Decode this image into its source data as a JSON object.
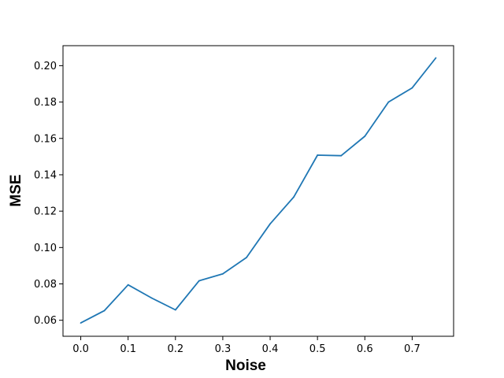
{
  "chart_data": {
    "type": "line",
    "title": "",
    "xlabel": "Noise",
    "ylabel": "MSE",
    "xlim": [
      -0.0375,
      0.7875
    ],
    "ylim": [
      0.0512,
      0.211
    ],
    "xticks": [
      0.0,
      0.1,
      0.2,
      0.3,
      0.4,
      0.5,
      0.6,
      0.7
    ],
    "xtick_labels": [
      "0.0",
      "0.1",
      "0.2",
      "0.3",
      "0.4",
      "0.5",
      "0.6",
      "0.7"
    ],
    "yticks": [
      0.06,
      0.08,
      0.1,
      0.12,
      0.14,
      0.16,
      0.18,
      0.2
    ],
    "ytick_labels": [
      "0.06",
      "0.08",
      "0.10",
      "0.12",
      "0.14",
      "0.16",
      "0.18",
      "0.20"
    ],
    "grid": false,
    "line_color": "#1f77b4",
    "series": [
      {
        "x": [
          0.0,
          0.05,
          0.1,
          0.15,
          0.2,
          0.25,
          0.3,
          0.35,
          0.4,
          0.45,
          0.5,
          0.55,
          0.6,
          0.65,
          0.7,
          0.75
        ],
        "values": [
          0.0585,
          0.0653,
          0.0795,
          0.0722,
          0.0657,
          0.0817,
          0.0855,
          0.0945,
          0.113,
          0.1278,
          0.1508,
          0.1505,
          0.1612,
          0.18,
          0.1878,
          0.2043
        ]
      }
    ]
  }
}
